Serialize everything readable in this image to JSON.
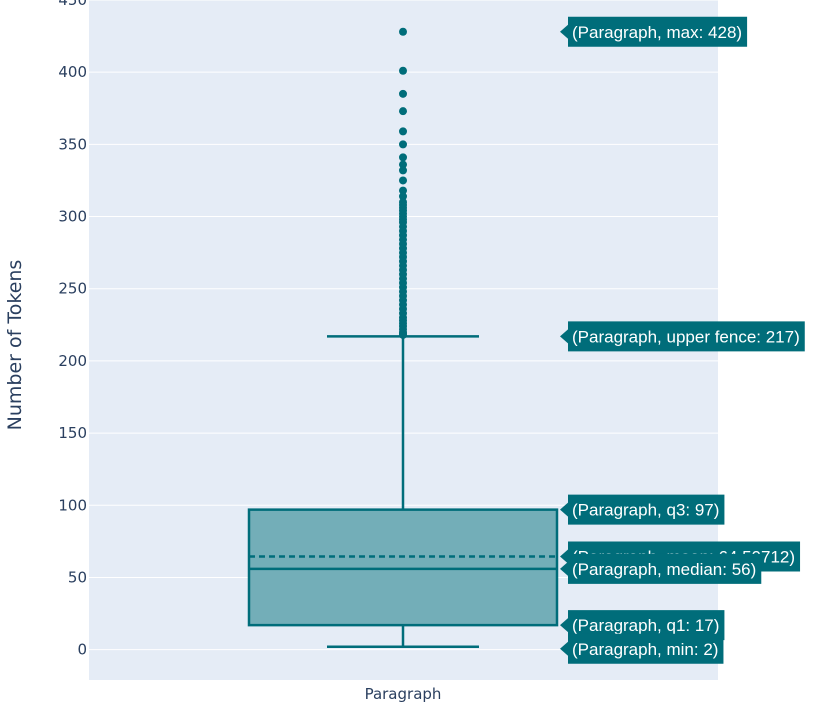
{
  "chart_data": {
    "type": "box",
    "category": "Paragraph",
    "ylabel": "Number of Tokens",
    "xlabel": "",
    "ylim": [
      -21,
      450
    ],
    "yticks": [
      0,
      50,
      100,
      150,
      200,
      250,
      300,
      350,
      400,
      450
    ],
    "grid": true,
    "stats": {
      "min": 2,
      "q1": 17,
      "median": 56,
      "mean": 64.50712,
      "q3": 97,
      "upper_fence": 217,
      "max": 428
    },
    "outliers": [
      428,
      401,
      385,
      373,
      359,
      350,
      341,
      336,
      332,
      325,
      318,
      314,
      310,
      308,
      306,
      304,
      302,
      300,
      298,
      296,
      293,
      290,
      287,
      284,
      281,
      278,
      275,
      272,
      269,
      266,
      263,
      260,
      257,
      254,
      251,
      248,
      245,
      242,
      239,
      236,
      233,
      230,
      228,
      226,
      224,
      222,
      220,
      219,
      218
    ],
    "annotations": [
      {
        "key": "max",
        "text": "(Paragraph, max: 428)"
      },
      {
        "key": "upper_fence",
        "text": "(Paragraph, upper fence: 217)"
      },
      {
        "key": "q3",
        "text": "(Paragraph, q3: 97)"
      },
      {
        "key": "mean",
        "text": "(Paragraph, mean: 64.50712)"
      },
      {
        "key": "median",
        "text": "(Paragraph, median: 56)"
      },
      {
        "key": "q1",
        "text": "(Paragraph, q1: 17)"
      },
      {
        "key": "min",
        "text": "(Paragraph, min: 2)"
      }
    ],
    "colors": {
      "box_line": "#006d7a",
      "box_fill": "#73aeb8",
      "plot_bg": "#e5ecf6",
      "grid": "#ffffff",
      "label_bg": "#006d7a",
      "label_text": "#ffffff",
      "axis_text": "#2a3f5f"
    }
  }
}
